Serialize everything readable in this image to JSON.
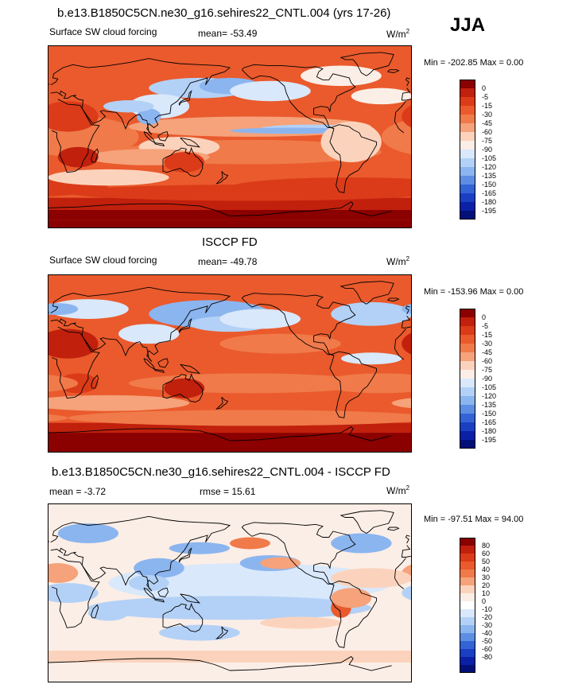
{
  "season": "JJA",
  "colors": {
    "cf_scale": [
      "#8b0000",
      "#c1200d",
      "#db3b18",
      "#ea5a2c",
      "#f07a4a",
      "#f6a27a",
      "#fbd3bd",
      "#fbeee6",
      "#d9e8fb",
      "#b3d1f6",
      "#8bb5ef",
      "#5e8ee4",
      "#3463d6",
      "#1a3fc2",
      "#0a21a6",
      "#031078"
    ],
    "diff_scale": [
      "#8b0000",
      "#c1200d",
      "#db3b18",
      "#ea5a2c",
      "#f07a4a",
      "#f6a27a",
      "#fbd3bd",
      "#fbeee6",
      "#ffffff",
      "#d9e8fb",
      "#b3d1f6",
      "#8bb5ef",
      "#5e8ee4",
      "#3463d6",
      "#1a3fc2",
      "#0a21a6",
      "#031078"
    ]
  },
  "panels": [
    {
      "title": "b.e13.B1850C5CN.ne30_g16.sehires22_CNTL.004 (yrs 17-26)",
      "left_label": "Surface SW cloud forcing",
      "mid_label": "mean= -53.49",
      "units": "W/m",
      "units_sup": "2",
      "minmax": "Min = -202.85 Max =   0.00",
      "colorbar_labels": [
        "0",
        "-5",
        "-15",
        "-30",
        "-45",
        "-60",
        "-75",
        "-90",
        "-105",
        "-120",
        "-135",
        "-150",
        "-165",
        "-180",
        "-195"
      ]
    },
    {
      "title": "ISCCP FD",
      "left_label": "Surface SW cloud forcing",
      "mid_label": "mean= -49.78",
      "units": "W/m",
      "units_sup": "2",
      "minmax": "Min = -153.96 Max =   0.00",
      "colorbar_labels": [
        "0",
        "-5",
        "-15",
        "-30",
        "-45",
        "-60",
        "-75",
        "-90",
        "-105",
        "-120",
        "-135",
        "-150",
        "-165",
        "-180",
        "-195"
      ]
    },
    {
      "title": "b.e13.B1850C5CN.ne30_g16.sehires22_CNTL.004 - ISCCP FD",
      "left_label": "mean =  -3.72",
      "mid_label": "rmse =  15.61",
      "units": "W/m",
      "units_sup": "2",
      "minmax": "Min = -97.51 Max =  94.00",
      "colorbar_labels": [
        "80",
        "60",
        "50",
        "40",
        "30",
        "20",
        "10",
        "0",
        "-10",
        "-20",
        "-30",
        "-40",
        "-50",
        "-60",
        "-80"
      ]
    }
  ]
}
